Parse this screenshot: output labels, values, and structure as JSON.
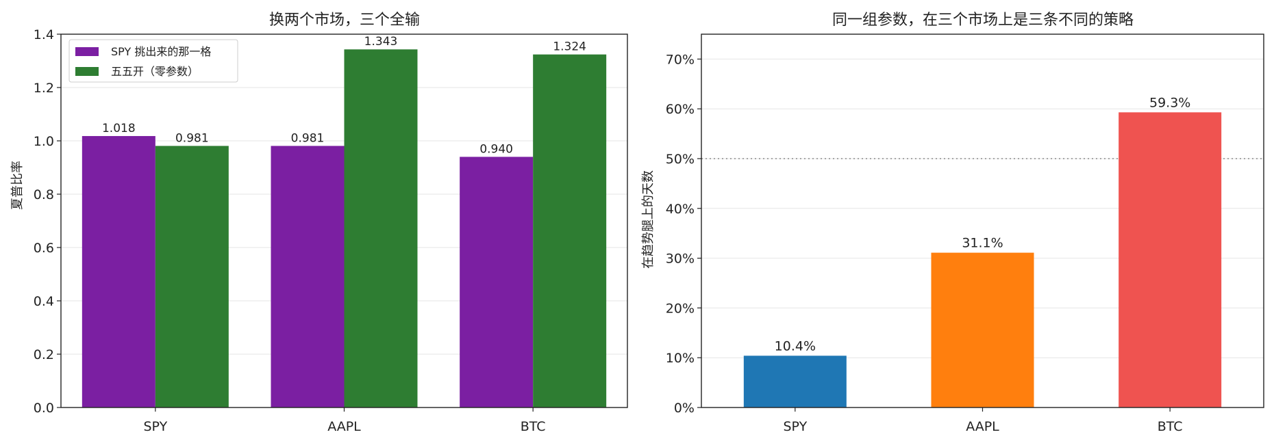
{
  "chart_data": [
    {
      "type": "bar",
      "title": "换两个市场，三个全输",
      "xlabel": "",
      "ylabel": "夏普比率",
      "categories": [
        "SPY",
        "AAPL",
        "BTC"
      ],
      "ylim": [
        0,
        1.4
      ],
      "yticks": [
        "0.0",
        "0.2",
        "0.4",
        "0.6",
        "0.8",
        "1.0",
        "1.2",
        "1.4"
      ],
      "grid": "y",
      "legend_position": "top-left",
      "series": [
        {
          "name": "SPY 挑出来的那一格",
          "color": "#7b1fa2",
          "values": [
            1.018,
            0.981,
            0.94
          ],
          "labels": [
            "1.018",
            "0.981",
            "0.940"
          ]
        },
        {
          "name": "五五开（零参数）",
          "color": "#2e7d32",
          "values": [
            0.981,
            1.343,
            1.324
          ],
          "labels": [
            "0.981",
            "1.343",
            "1.324"
          ]
        }
      ]
    },
    {
      "type": "bar",
      "title": "同一组参数，在三个市场上是三条不同的策略",
      "xlabel": "",
      "ylabel": "在趋势腿上的天数",
      "categories": [
        "SPY",
        "AAPL",
        "BTC"
      ],
      "ylim": [
        0,
        75
      ],
      "yticks": [
        "0%",
        "10%",
        "20%",
        "30%",
        "40%",
        "50%",
        "60%",
        "70%"
      ],
      "grid": "y",
      "reference_line": 50,
      "values": [
        10.4,
        31.1,
        59.3
      ],
      "labels": [
        "10.4%",
        "31.1%",
        "59.3%"
      ],
      "colors": [
        "#1f77b4",
        "#ff7f0e",
        "#ef5350"
      ]
    }
  ]
}
